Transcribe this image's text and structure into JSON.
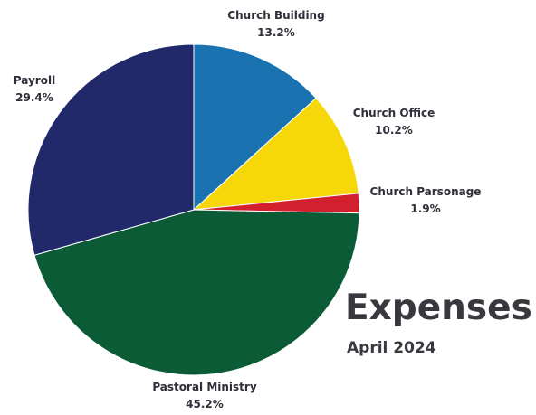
{
  "chart_data": {
    "type": "pie",
    "title": "Expenses",
    "subtitle": "April 2024",
    "slices": [
      {
        "label": "Church Building",
        "value": 13.2,
        "value_label": "13.2%",
        "color": "#1a73b0"
      },
      {
        "label": "Church Office",
        "value": 10.2,
        "value_label": "10.2%",
        "color": "#f6d80a"
      },
      {
        "label": "Church Parsonage",
        "value": 1.9,
        "value_label": "1.9%",
        "color": "#d3202e"
      },
      {
        "label": "Pastoral Ministry",
        "value": 45.2,
        "value_label": "45.2%",
        "color": "#0c5b37"
      },
      {
        "label": "Payroll",
        "value": 29.4,
        "value_label": "29.4%",
        "color": "#21296b"
      }
    ]
  }
}
